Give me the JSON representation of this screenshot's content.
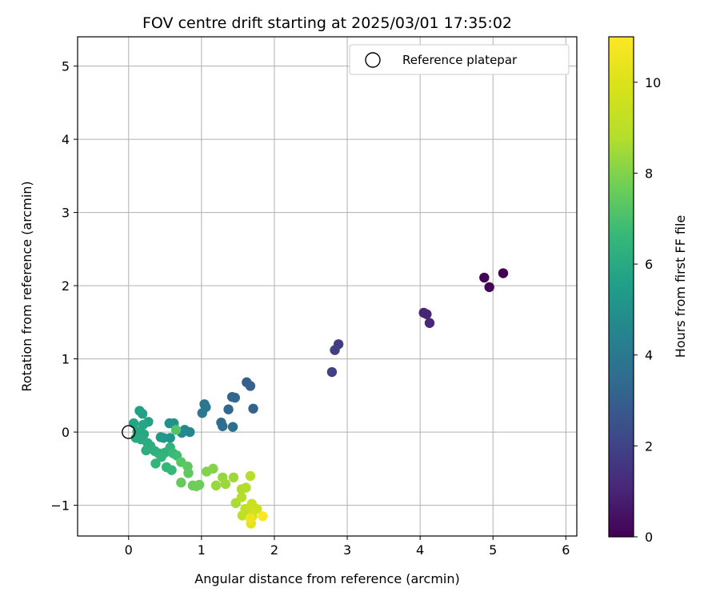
{
  "chart_data": {
    "type": "scatter",
    "title": "FOV centre drift starting at 2025/03/01 17:35:02",
    "xlabel": "Angular distance from reference (arcmin)",
    "ylabel": "Rotation from reference (arcmin)",
    "xlim": [
      -0.7,
      6.15
    ],
    "ylim": [
      -1.42,
      5.4
    ],
    "xticks": [
      "0",
      "1",
      "2",
      "3",
      "4",
      "5",
      "6"
    ],
    "yticks": [
      "−1",
      "0",
      "1",
      "2",
      "3",
      "4",
      "5"
    ],
    "grid": true,
    "legend": {
      "label": "Reference platepar",
      "placement": "top-right"
    },
    "reference_point": {
      "x": 0,
      "y": 0
    },
    "colorbar": {
      "label": "Hours from first FF file",
      "colormap": "viridis",
      "range": [
        0,
        11
      ],
      "ticks": [
        "0",
        "2",
        "4",
        "6",
        "8",
        "10"
      ]
    },
    "points": [
      {
        "x": 5.14,
        "y": 2.17,
        "c": 0.0
      },
      {
        "x": 4.88,
        "y": 2.11,
        "c": 0.1
      },
      {
        "x": 4.95,
        "y": 1.98,
        "c": 0.15
      },
      {
        "x": 4.05,
        "y": 1.63,
        "c": 1.0
      },
      {
        "x": 4.09,
        "y": 1.61,
        "c": 1.05
      },
      {
        "x": 4.13,
        "y": 1.49,
        "c": 1.1
      },
      {
        "x": 2.88,
        "y": 1.2,
        "c": 1.8
      },
      {
        "x": 2.83,
        "y": 1.12,
        "c": 1.9
      },
      {
        "x": 2.79,
        "y": 0.82,
        "c": 1.95
      },
      {
        "x": 1.62,
        "y": 0.68,
        "c": 3.0
      },
      {
        "x": 1.67,
        "y": 0.63,
        "c": 3.05
      },
      {
        "x": 1.71,
        "y": 0.32,
        "c": 3.1
      },
      {
        "x": 1.42,
        "y": 0.48,
        "c": 3.2
      },
      {
        "x": 1.46,
        "y": 0.47,
        "c": 3.25
      },
      {
        "x": 1.37,
        "y": 0.31,
        "c": 3.3
      },
      {
        "x": 1.27,
        "y": 0.13,
        "c": 3.5
      },
      {
        "x": 1.29,
        "y": 0.08,
        "c": 3.55
      },
      {
        "x": 1.43,
        "y": 0.07,
        "c": 3.6
      },
      {
        "x": 1.04,
        "y": 0.38,
        "c": 3.9
      },
      {
        "x": 1.06,
        "y": 0.34,
        "c": 3.95
      },
      {
        "x": 1.01,
        "y": 0.26,
        "c": 4.0
      },
      {
        "x": 0.77,
        "y": 0.03,
        "c": 4.5
      },
      {
        "x": 0.84,
        "y": 0.0,
        "c": 4.6
      },
      {
        "x": 0.73,
        "y": -0.01,
        "c": 4.7
      },
      {
        "x": 0.56,
        "y": 0.12,
        "c": 5.0
      },
      {
        "x": 0.62,
        "y": 0.12,
        "c": 5.05
      },
      {
        "x": 0.57,
        "y": -0.08,
        "c": 5.1
      },
      {
        "x": 0.48,
        "y": -0.08,
        "c": 5.3
      },
      {
        "x": 0.44,
        "y": -0.07,
        "c": 5.35
      },
      {
        "x": 0.15,
        "y": 0.29,
        "c": 5.6
      },
      {
        "x": 0.19,
        "y": 0.25,
        "c": 5.65
      },
      {
        "x": 0.27,
        "y": 0.14,
        "c": 5.7
      },
      {
        "x": 0.07,
        "y": 0.12,
        "c": 5.8
      },
      {
        "x": 0.2,
        "y": 0.1,
        "c": 5.85
      },
      {
        "x": 0.12,
        "y": 0.01,
        "c": 5.9
      },
      {
        "x": 0.21,
        "y": -0.03,
        "c": 5.95
      },
      {
        "x": 0.1,
        "y": -0.08,
        "c": 6.0
      },
      {
        "x": 0.17,
        "y": -0.1,
        "c": 6.05
      },
      {
        "x": 0.26,
        "y": -0.15,
        "c": 6.1
      },
      {
        "x": 0.3,
        "y": -0.19,
        "c": 6.15
      },
      {
        "x": 0.24,
        "y": -0.25,
        "c": 6.2
      },
      {
        "x": 0.36,
        "y": -0.26,
        "c": 6.25
      },
      {
        "x": 0.41,
        "y": -0.29,
        "c": 6.3
      },
      {
        "x": 0.5,
        "y": -0.28,
        "c": 6.35
      },
      {
        "x": 0.57,
        "y": -0.21,
        "c": 6.4
      },
      {
        "x": 0.45,
        "y": -0.34,
        "c": 6.45
      },
      {
        "x": 0.37,
        "y": -0.43,
        "c": 6.5
      },
      {
        "x": 0.52,
        "y": -0.48,
        "c": 6.55
      },
      {
        "x": 0.59,
        "y": -0.52,
        "c": 6.6
      },
      {
        "x": 0.61,
        "y": -0.29,
        "c": 6.7
      },
      {
        "x": 0.66,
        "y": -0.32,
        "c": 6.75
      },
      {
        "x": 0.65,
        "y": 0.03,
        "c": 7.2
      },
      {
        "x": 0.72,
        "y": -0.41,
        "c": 7.3
      },
      {
        "x": 0.81,
        "y": -0.47,
        "c": 7.35
      },
      {
        "x": 0.82,
        "y": -0.56,
        "c": 7.4
      },
      {
        "x": 0.72,
        "y": -0.69,
        "c": 7.5
      },
      {
        "x": 0.88,
        "y": -0.73,
        "c": 7.6
      },
      {
        "x": 0.97,
        "y": -0.72,
        "c": 7.65
      },
      {
        "x": 0.93,
        "y": -0.74,
        "c": 7.7
      },
      {
        "x": 1.07,
        "y": -0.54,
        "c": 8.0
      },
      {
        "x": 1.16,
        "y": -0.5,
        "c": 8.05
      },
      {
        "x": 1.29,
        "y": -0.62,
        "c": 8.3
      },
      {
        "x": 1.2,
        "y": -0.73,
        "c": 8.35
      },
      {
        "x": 1.33,
        "y": -0.71,
        "c": 8.4
      },
      {
        "x": 1.44,
        "y": -0.62,
        "c": 8.45
      },
      {
        "x": 1.47,
        "y": -0.97,
        "c": 8.6
      },
      {
        "x": 1.55,
        "y": -0.78,
        "c": 8.7
      },
      {
        "x": 1.61,
        "y": -0.76,
        "c": 8.75
      },
      {
        "x": 1.55,
        "y": -0.89,
        "c": 8.8
      },
      {
        "x": 1.67,
        "y": -0.6,
        "c": 8.9
      },
      {
        "x": 1.56,
        "y": -1.14,
        "c": 9.1
      },
      {
        "x": 1.6,
        "y": -1.05,
        "c": 9.2
      },
      {
        "x": 1.66,
        "y": -1.08,
        "c": 9.3
      },
      {
        "x": 1.69,
        "y": -0.98,
        "c": 9.4
      },
      {
        "x": 1.72,
        "y": -1.06,
        "c": 9.5
      },
      {
        "x": 1.76,
        "y": -1.05,
        "c": 9.6
      },
      {
        "x": 1.7,
        "y": -1.15,
        "c": 9.8
      },
      {
        "x": 1.68,
        "y": -1.25,
        "c": 10.2
      },
      {
        "x": 1.67,
        "y": -1.18,
        "c": 10.5
      },
      {
        "x": 1.84,
        "y": -1.15,
        "c": 10.9
      }
    ]
  }
}
